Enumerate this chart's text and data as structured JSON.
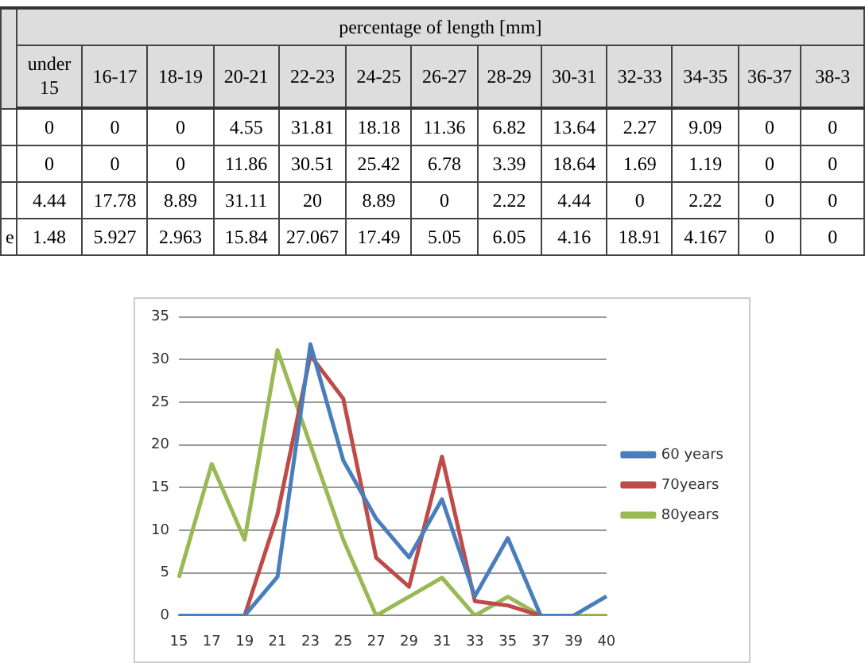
{
  "chart_data": [
    {
      "type": "other",
      "title": "percentage of length [mm]",
      "data_labels": true,
      "categories": [
        "under 15",
        "16-17",
        "18-19",
        "20-21",
        "22-23",
        "24-25",
        "26-27",
        "28-29",
        "30-31",
        "32-33",
        "34-35",
        "36-37",
        "38-3"
      ],
      "series": [
        {
          "values": [
            0,
            0,
            0,
            4.55,
            31.81,
            18.18,
            11.36,
            6.82,
            13.64,
            2.27,
            9.09,
            0,
            0
          ]
        },
        {
          "values": [
            0,
            0,
            0,
            11.86,
            30.51,
            25.42,
            6.78,
            3.39,
            18.64,
            1.69,
            1.19,
            0,
            0
          ]
        },
        {
          "values": [
            4.44,
            17.78,
            8.89,
            31.11,
            20,
            8.89,
            0,
            2.22,
            4.44,
            0,
            2.22,
            0,
            0
          ]
        },
        {
          "name": "e",
          "values": [
            1.48,
            5.927,
            2.963,
            15.84,
            27.067,
            17.49,
            5.05,
            6.05,
            4.16,
            18.91,
            4.167,
            0,
            0
          ]
        }
      ]
    },
    {
      "type": "line",
      "categories": [
        "15",
        "17",
        "19",
        "21",
        "23",
        "25",
        "27",
        "29",
        "31",
        "33",
        "35",
        "37",
        "39",
        "40"
      ],
      "series": [
        {
          "name": "60 years",
          "color": "#4a7ebb",
          "values": [
            0,
            0,
            0,
            4.55,
            31.81,
            18.18,
            11.36,
            6.82,
            13.64,
            2.27,
            9.09,
            0,
            0,
            2.27
          ]
        },
        {
          "name": "70years",
          "color": "#be4b48",
          "values": [
            0,
            0,
            0,
            11.86,
            30.51,
            25.42,
            6.78,
            3.39,
            18.64,
            1.69,
            1.19,
            0,
            null,
            null
          ]
        },
        {
          "name": "80years",
          "color": "#98b954",
          "values": [
            4.44,
            17.78,
            8.89,
            31.11,
            20,
            8.89,
            0,
            2.22,
            4.44,
            0,
            2.22,
            0,
            0,
            0
          ]
        }
      ],
      "ylim": [
        0,
        35
      ],
      "yticks": [
        0,
        5,
        10,
        15,
        20,
        25,
        30,
        35
      ],
      "grid": "y",
      "legend": "right"
    }
  ]
}
